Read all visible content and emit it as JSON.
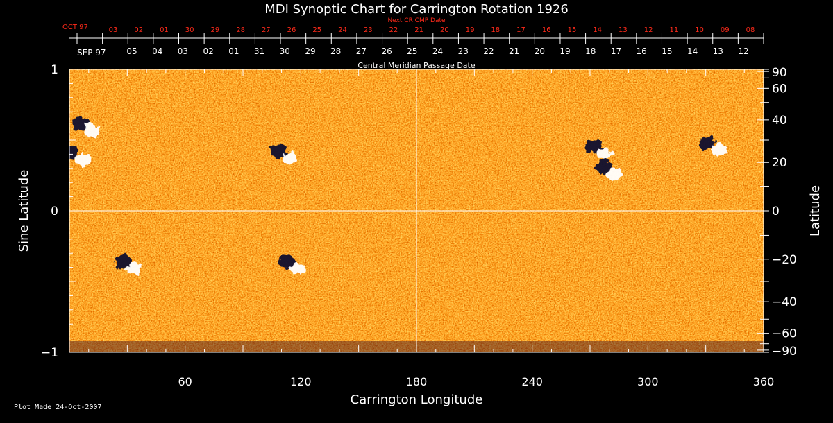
{
  "chart_data": {
    "type": "heatmap",
    "title": "MDI Synoptic Chart for Carrington Rotation 1926",
    "xlabel": "Carrington Longitude",
    "ylabel_left": "Sine Latitude",
    "ylabel_right": "Latitude",
    "top_axis_label": "Central Meridian Passage Date",
    "next_cr_label": "Next CR CMP Date",
    "footer": "Plot Made 24-Oct-2007",
    "xlim": [
      0,
      360
    ],
    "ylim": [
      -1,
      1
    ],
    "x_ticks": [
      60,
      120,
      180,
      240,
      300,
      360
    ],
    "y_ticks_left": [
      {
        "value": 1,
        "label": "1"
      },
      {
        "value": 0,
        "label": "0"
      },
      {
        "value": -1,
        "label": "−1"
      }
    ],
    "y_ticks_right": [
      {
        "lat": 90,
        "label": "90"
      },
      {
        "lat": 60,
        "label": "60"
      },
      {
        "lat": 40,
        "label": "40"
      },
      {
        "lat": 20,
        "label": "20"
      },
      {
        "lat": 0,
        "label": "0"
      },
      {
        "lat": -20,
        "label": "−20"
      },
      {
        "lat": -40,
        "label": "−40"
      },
      {
        "lat": -60,
        "label": "−60"
      },
      {
        "lat": -90,
        "label": "−90"
      }
    ],
    "cmp_month_label": "SEP 97",
    "cmp_dates": [
      "05",
      "04",
      "03",
      "02",
      "01",
      "31",
      "30",
      "29",
      "28",
      "27",
      "26",
      "25",
      "24",
      "23",
      "22",
      "21",
      "20",
      "19",
      "18",
      "17",
      "16",
      "15",
      "14",
      "13",
      "12"
    ],
    "next_cr_month_label": "OCT 97",
    "next_cr_dates": [
      "03",
      "02",
      "01",
      "30",
      "29",
      "28",
      "27",
      "26",
      "25",
      "24",
      "23",
      "22",
      "21",
      "20",
      "19",
      "18",
      "17",
      "16",
      "15",
      "14",
      "13",
      "12",
      "11",
      "10",
      "09",
      "08"
    ],
    "active_regions": [
      {
        "lon": 8,
        "sinlat": 0.6,
        "polarity": "mixed"
      },
      {
        "lon": 3,
        "sinlat": 0.39,
        "polarity": "mixed"
      },
      {
        "lon": 111,
        "sinlat": 0.4,
        "polarity": "mixed"
      },
      {
        "lon": 274,
        "sinlat": 0.43,
        "polarity": "mixed"
      },
      {
        "lon": 279,
        "sinlat": 0.29,
        "polarity": "mixed"
      },
      {
        "lon": 333,
        "sinlat": 0.46,
        "polarity": "mixed"
      },
      {
        "lon": 30,
        "sinlat": -0.38,
        "polarity": "mixed"
      },
      {
        "lon": 115,
        "sinlat": -0.38,
        "polarity": "mixed"
      }
    ],
    "colors": {
      "background": "#000000",
      "field_low": "#b01500",
      "field_mid": "#ff5a00",
      "field_high": "#ffcc30",
      "positive": "#ffffff",
      "negative": "#0a0a30",
      "next_cr_text": "#ff2a1a"
    }
  }
}
